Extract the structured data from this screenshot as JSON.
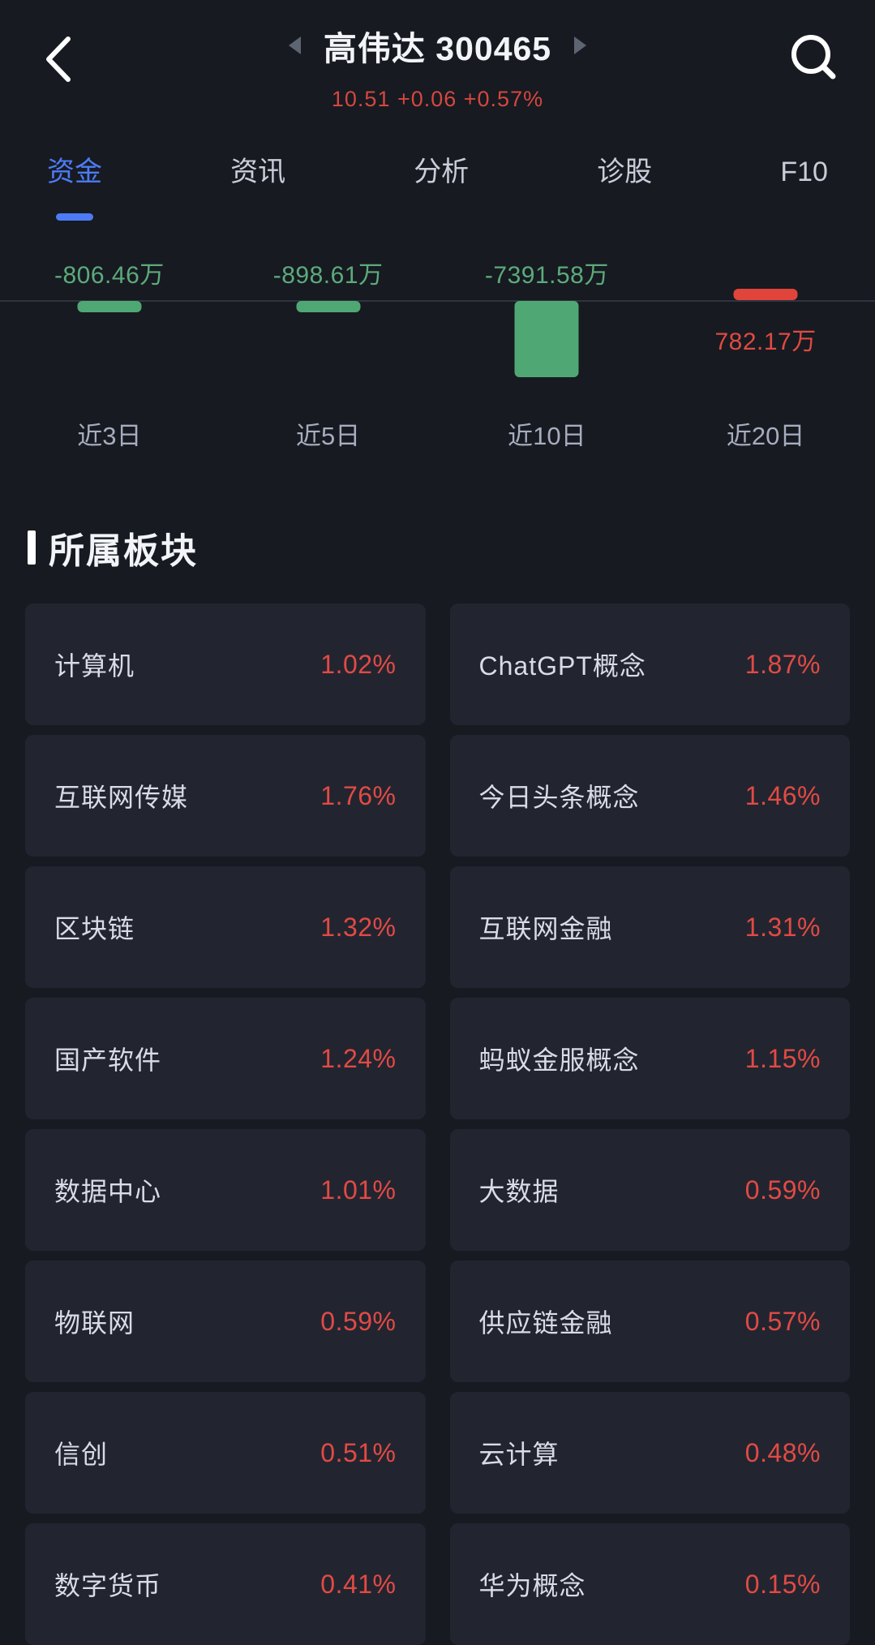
{
  "header": {
    "title": "高伟达 300465",
    "price_line": "10.51 +0.06 +0.57%"
  },
  "icons": {
    "back": "back-chevron",
    "prev_stock": "triangle-left",
    "next_stock": "triangle-right",
    "search": "magnifier"
  },
  "tabs": [
    {
      "label": "资金",
      "active": true
    },
    {
      "label": "资讯",
      "active": false
    },
    {
      "label": "分析",
      "active": false
    },
    {
      "label": "诊股",
      "active": false
    },
    {
      "label": "F10",
      "active": false
    }
  ],
  "chart_data": {
    "type": "bar",
    "categories": [
      "近3日",
      "近5日",
      "近10日",
      "近20日"
    ],
    "values": [
      -806.46,
      -898.61,
      -7391.58,
      782.17
    ],
    "value_labels": [
      "-806.46万",
      "-898.61万",
      "-7391.58万",
      "782.17万"
    ],
    "unit": "万",
    "ylim": [
      -7391.58,
      782.17
    ],
    "grid": false,
    "baseline_color": "#30343e",
    "negative_color": "#4fa873",
    "negative_text_color": "#5cab7b",
    "positive_color": "#e0443a",
    "positive_text_color": "#df4a41"
  },
  "sectors": {
    "section_title": "所属板块",
    "items": [
      {
        "name": "计算机",
        "change": "1.02%"
      },
      {
        "name": "ChatGPT概念",
        "change": "1.87%"
      },
      {
        "name": "互联网传媒",
        "change": "1.76%"
      },
      {
        "name": "今日头条概念",
        "change": "1.46%"
      },
      {
        "name": "区块链",
        "change": "1.32%"
      },
      {
        "name": "互联网金融",
        "change": "1.31%"
      },
      {
        "name": "国产软件",
        "change": "1.24%"
      },
      {
        "name": "蚂蚁金服概念",
        "change": "1.15%"
      },
      {
        "name": "数据中心",
        "change": "1.01%"
      },
      {
        "name": "大数据",
        "change": "0.59%"
      },
      {
        "name": "物联网",
        "change": "0.59%"
      },
      {
        "name": "供应链金融",
        "change": "0.57%"
      },
      {
        "name": "信创",
        "change": "0.51%"
      },
      {
        "name": "云计算",
        "change": "0.48%"
      },
      {
        "name": "数字货币",
        "change": "0.41%"
      },
      {
        "name": "华为概念",
        "change": "0.15%"
      }
    ]
  },
  "colors": {
    "page_bg": "#171a21",
    "tile_bg": "#222530",
    "accent_blue": "#4c7bf5",
    "up_red": "#e24a44",
    "price_red": "#d5473f",
    "title_white": "#f3f4f8",
    "tab_gray": "#c8cdd9",
    "axis_label_gray": "#a6adbf"
  }
}
